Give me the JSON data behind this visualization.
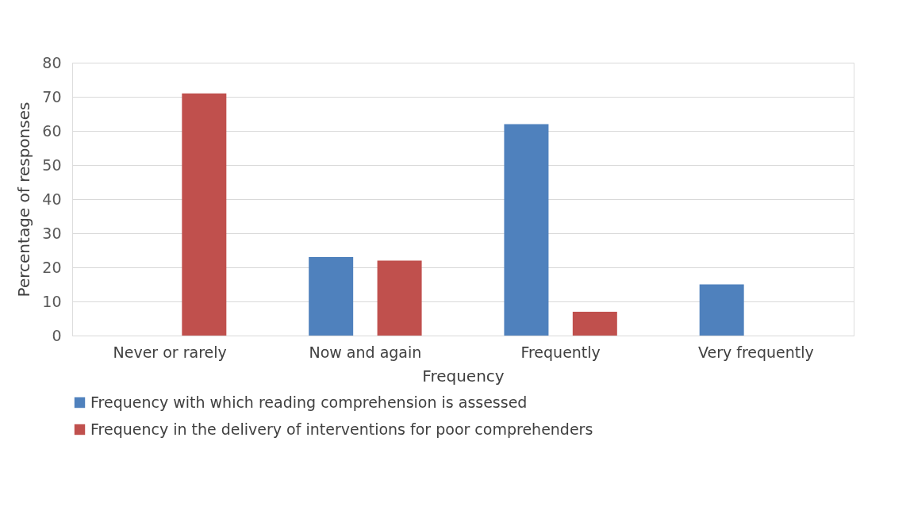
{
  "chart_data": {
    "type": "bar",
    "xlabel": "Frequency",
    "ylabel": "Percentage of responses",
    "categories": [
      "Never or rarely",
      "Now and again",
      "Frequently",
      "Very frequently"
    ],
    "series": [
      {
        "name": "Frequency with which reading comprehension is assessed",
        "color": "#4f81bd",
        "values": [
          0,
          23,
          62,
          15
        ]
      },
      {
        "name": "Frequency in the delivery of interventions for poor comprehenders",
        "color": "#c0504d",
        "values": [
          71,
          22,
          7,
          0
        ]
      }
    ],
    "ylim": [
      0,
      80
    ],
    "yticks": [
      0,
      10,
      20,
      30,
      40,
      50,
      60,
      70,
      80
    ],
    "grid": "y",
    "legend": "bottom"
  }
}
